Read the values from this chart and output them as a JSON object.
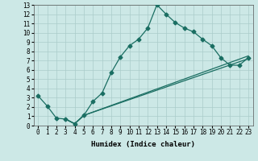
{
  "xlabel": "Humidex (Indice chaleur)",
  "xlim": [
    -0.5,
    23.5
  ],
  "ylim": [
    0,
    13
  ],
  "xticks": [
    0,
    1,
    2,
    3,
    4,
    5,
    6,
    7,
    8,
    9,
    10,
    11,
    12,
    13,
    14,
    15,
    16,
    17,
    18,
    19,
    20,
    21,
    22,
    23
  ],
  "yticks": [
    0,
    1,
    2,
    3,
    4,
    5,
    6,
    7,
    8,
    9,
    10,
    11,
    12,
    13
  ],
  "bg_color": "#cce8e6",
  "grid_color": "#aaccca",
  "line_color": "#1a6e62",
  "line1_x": [
    0,
    1,
    2,
    3,
    4,
    5,
    6,
    7,
    8,
    9,
    10,
    11,
    12,
    13,
    14,
    15,
    16,
    17,
    18,
    19,
    20,
    21,
    22,
    23
  ],
  "line1_y": [
    3.2,
    2.1,
    0.8,
    0.7,
    0.2,
    1.1,
    2.6,
    3.5,
    5.7,
    7.4,
    8.6,
    9.3,
    10.5,
    13.0,
    12.0,
    11.1,
    10.5,
    10.1,
    9.3,
    8.6,
    7.3,
    6.5,
    6.5,
    7.3
  ],
  "line2_x": [
    3,
    4,
    5,
    23
  ],
  "line2_y": [
    0.7,
    0.2,
    1.1,
    7.5
  ],
  "line3_x": [
    3,
    4,
    5,
    23
  ],
  "line3_y": [
    0.7,
    0.2,
    1.1,
    7.2
  ],
  "marker": "D",
  "markersize": 2.5,
  "linewidth": 0.9,
  "font_family": "monospace",
  "tick_fontsize": 5.5,
  "xlabel_fontsize": 6.5
}
